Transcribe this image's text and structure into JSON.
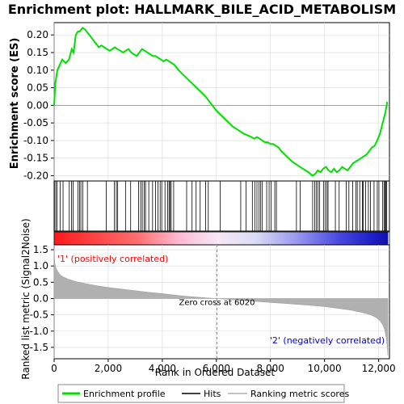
{
  "title": "Enrichment plot: HALLMARK_BILE_ACID_METABOLISM",
  "colors": {
    "profile": "#00e000",
    "hit": "#000000",
    "metric_fill": "#b0b0b0",
    "pos_label": "#ff0000",
    "neg_label": "#0000cc",
    "grid": "#d8d8d8"
  },
  "chart_data": [
    {
      "type": "line",
      "name": "enrichment",
      "ylabel": "Enrichment score (ES)",
      "ylim": [
        -0.215,
        0.235
      ],
      "xlim": [
        0,
        12400
      ],
      "yticks": [
        0.2,
        0.15,
        0.1,
        0.05,
        0.0,
        -0.05,
        -0.1,
        -0.15,
        -0.2
      ],
      "ytick_labels": [
        "0.20",
        "0.15",
        "0.10",
        "0.05",
        "0.00",
        "-0.05",
        "-0.10",
        "-0.15",
        "-0.20"
      ],
      "grid": true,
      "series": [
        {
          "label": "Enrichment profile",
          "x": [
            0,
            40,
            120,
            180,
            300,
            430,
            550,
            650,
            720,
            800,
            880,
            950,
            1050,
            1150,
            1250,
            1350,
            1450,
            1550,
            1650,
            1750,
            1850,
            1950,
            2050,
            2150,
            2250,
            2330,
            2450,
            2550,
            2650,
            2750,
            2850,
            2950,
            3050,
            3150,
            3250,
            3350,
            3450,
            3550,
            3650,
            3750,
            3850,
            3950,
            4050,
            4150,
            4250,
            4350,
            4450,
            4600,
            4800,
            5000,
            5200,
            5400,
            5600,
            5800,
            6000,
            6200,
            6400,
            6600,
            6800,
            7000,
            7150,
            7300,
            7400,
            7500,
            7600,
            7700,
            7800,
            7900,
            8000,
            8100,
            8200,
            8300,
            8400,
            8600,
            8800,
            9000,
            9200,
            9400,
            9550,
            9650,
            9750,
            9850,
            9950,
            10050,
            10150,
            10250,
            10350,
            10450,
            10550,
            10650,
            10750,
            10850,
            10950,
            11050,
            11150,
            11250,
            11350,
            11450,
            11550,
            11650,
            11750,
            11850,
            11950,
            12050,
            12150,
            12250,
            12320
          ],
          "y": [
            0.0,
            0.06,
            0.1,
            0.11,
            0.13,
            0.12,
            0.13,
            0.16,
            0.15,
            0.2,
            0.21,
            0.21,
            0.22,
            0.215,
            0.205,
            0.195,
            0.185,
            0.175,
            0.165,
            0.17,
            0.165,
            0.16,
            0.155,
            0.16,
            0.165,
            0.16,
            0.155,
            0.15,
            0.155,
            0.16,
            0.15,
            0.145,
            0.14,
            0.15,
            0.16,
            0.155,
            0.15,
            0.145,
            0.14,
            0.14,
            0.135,
            0.13,
            0.125,
            0.13,
            0.125,
            0.12,
            0.115,
            0.1,
            0.085,
            0.07,
            0.055,
            0.04,
            0.025,
            0.005,
            -0.015,
            -0.03,
            -0.045,
            -0.06,
            -0.07,
            -0.08,
            -0.085,
            -0.09,
            -0.095,
            -0.09,
            -0.095,
            -0.1,
            -0.105,
            -0.105,
            -0.11,
            -0.11,
            -0.115,
            -0.12,
            -0.13,
            -0.145,
            -0.16,
            -0.17,
            -0.18,
            -0.19,
            -0.2,
            -0.195,
            -0.185,
            -0.19,
            -0.18,
            -0.175,
            -0.185,
            -0.19,
            -0.18,
            -0.19,
            -0.185,
            -0.175,
            -0.18,
            -0.185,
            -0.175,
            -0.165,
            -0.16,
            -0.155,
            -0.15,
            -0.145,
            -0.14,
            -0.13,
            -0.12,
            -0.115,
            -0.1,
            -0.08,
            -0.05,
            -0.02,
            0.01
          ]
        }
      ],
      "hits": [
        10,
        60,
        110,
        220,
        330,
        560,
        640,
        700,
        880,
        940,
        990,
        1060,
        1230,
        1930,
        2230,
        2300,
        2350,
        2640,
        2830,
        3120,
        3200,
        3260,
        3330,
        3380,
        3500,
        3640,
        3750,
        3840,
        3920,
        3980,
        4100,
        4200,
        4250,
        4290,
        4330,
        4420,
        4900,
        5100,
        5250,
        5400,
        5600,
        5700,
        6140,
        6900,
        7100,
        7330,
        7420,
        7500,
        7580,
        7640,
        7700,
        7860,
        7950,
        8020,
        8160,
        8220,
        8960,
        9100,
        9560,
        9640,
        9700,
        9760,
        9820,
        9960,
        10020,
        10090,
        10130,
        10400,
        10540,
        10800,
        10900,
        11040,
        11160,
        11210,
        11300,
        11400,
        11430,
        11520,
        11620,
        11700,
        11830,
        11950,
        12010,
        12150,
        12200,
        12240,
        12270,
        12300
      ],
      "legend": [
        "Enrichment profile",
        "Hits",
        "Ranking metric scores"
      ]
    },
    {
      "type": "area",
      "name": "ranked-metric",
      "ylabel": "Ranked list metric (Signal2Noise)",
      "xlabel": "Rank in Ordered Dataset",
      "ylim": [
        -1.85,
        1.65
      ],
      "xlim": [
        0,
        12400
      ],
      "yticks": [
        1.5,
        1.0,
        0.5,
        0.0,
        -0.5,
        -1.0,
        -1.5
      ],
      "ytick_labels": [
        "1.5",
        "1.0",
        "0.5",
        "0.0",
        "-0.5",
        "-1.0",
        "-1.5"
      ],
      "xticks": [
        0,
        2000,
        4000,
        6000,
        8000,
        10000,
        12000
      ],
      "xtick_labels": [
        "0",
        "2,000",
        "4,000",
        "6,000",
        "8,000",
        "10,000",
        "12,000"
      ],
      "x": [
        0,
        20,
        60,
        120,
        200,
        300,
        500,
        800,
        1200,
        1600,
        2000,
        2500,
        3000,
        3500,
        4000,
        4500,
        5000,
        5500,
        6020,
        6500,
        7000,
        7500,
        8000,
        8500,
        9000,
        9500,
        10000,
        10500,
        11000,
        11400,
        11700,
        11900,
        12050,
        12150,
        12220,
        12280,
        12320,
        12340
      ],
      "y": [
        1.5,
        1.1,
        0.95,
        0.85,
        0.75,
        0.68,
        0.6,
        0.52,
        0.45,
        0.39,
        0.34,
        0.29,
        0.24,
        0.19,
        0.15,
        0.1,
        0.06,
        0.03,
        0.0,
        -0.03,
        -0.06,
        -0.09,
        -0.12,
        -0.15,
        -0.18,
        -0.21,
        -0.25,
        -0.3,
        -0.36,
        -0.43,
        -0.5,
        -0.58,
        -0.68,
        -0.8,
        -0.95,
        -1.2,
        -1.5,
        -1.75
      ],
      "zero_cross_label": "Zero cross at 6020",
      "zero_cross": 6020,
      "pos_label": "'1' (positively correlated)",
      "neg_label": "'2' (negatively correlated)"
    }
  ]
}
